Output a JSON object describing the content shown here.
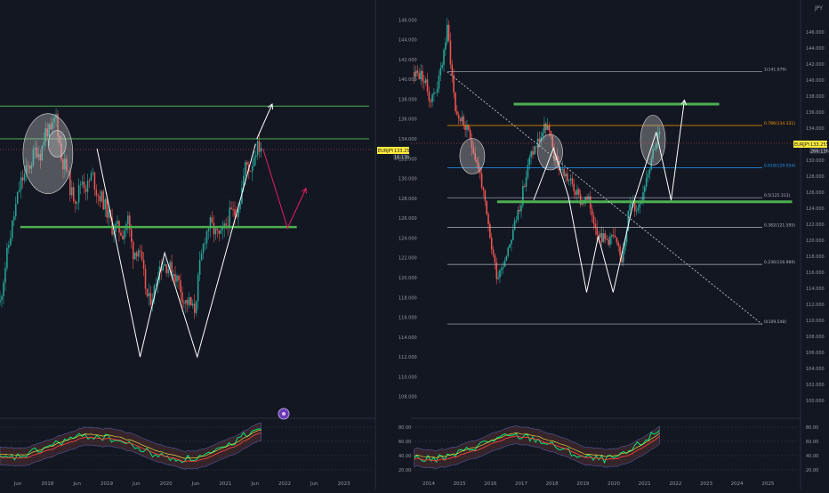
{
  "colors": {
    "bg": "#131722",
    "axis_text": "#9598a1",
    "grid": "#1e222d",
    "up": "#26a69a",
    "down": "#ef5350",
    "level_green": "#4caf50",
    "pattern_white": "#ffffff",
    "pattern_pink": "#e91e63",
    "fib_orange": "#ff9800",
    "fib_blue": "#2196f3",
    "price_tag_bg": "#ffeb3b",
    "rsi_green": "#00e676",
    "rsi_red": "#f44336",
    "rsi_yellow": "#ffeb3b"
  },
  "panels": {
    "left": {
      "currency": "",
      "price_tag": {
        "symbol": "EURJPY",
        "price": "133.255",
        "countdown": "16:13h"
      }
    },
    "right": {
      "currency": "JPY",
      "price_tag": {
        "symbol": "EURJPY",
        "price": "133.255",
        "countdown": "266:13h"
      },
      "fib_labels": [
        "1(141.079)",
        "0.786(134.331)",
        "0.618(129.054)",
        "0.5(125.313)",
        "0.382(121.595)",
        "0.236(116.989)",
        "0(109.548)"
      ]
    }
  },
  "rsi_ticks": [
    "80.00",
    "60.00",
    "40.00",
    "20.00"
  ],
  "chart_data": [
    {
      "type": "line",
      "title": "",
      "price_axis": [
        "146.000",
        "144.000",
        "142.000",
        "140.000",
        "138.000",
        "136.000",
        "134.000",
        "132.000",
        "130.000",
        "128.000",
        "126.000",
        "124.000",
        "122.000",
        "120.000",
        "118.000",
        "116.000",
        "114.000",
        "112.000",
        "110.000",
        "108.000"
      ],
      "time_axis": [
        "Jun",
        "2018",
        "Jun",
        "2019",
        "Jun",
        "2020",
        "Jun",
        "2021",
        "Jun",
        "2022",
        "Jun",
        "2023"
      ],
      "ylim": [
        106,
        148
      ],
      "xlim": [
        2017.17,
        2023.25
      ],
      "series": [
        {
          "x": [
            2017.17,
            2017.25,
            2017.33,
            2017.42,
            2017.5,
            2017.58,
            2017.67,
            2017.75,
            2017.83,
            2017.92,
            2018.0,
            2018.08,
            2018.17,
            2018.25,
            2018.33,
            2018.42,
            2018.5,
            2018.58,
            2018.67,
            2018.75,
            2018.83,
            2018.92,
            2019.0,
            2019.08,
            2019.17,
            2019.25,
            2019.33,
            2019.42,
            2019.5,
            2019.58,
            2019.67,
            2019.75,
            2019.83,
            2019.92,
            2020.0,
            2020.08,
            2020.17,
            2020.25,
            2020.33,
            2020.42,
            2020.5,
            2020.58,
            2020.67,
            2020.75,
            2020.83,
            2020.92,
            2021.0,
            2021.08,
            2021.17,
            2021.25,
            2021.33,
            2021.42
          ],
          "y": [
            117.5,
            121.0,
            124.0,
            127.0,
            129.5,
            130.5,
            131.5,
            133.0,
            132.5,
            135.0,
            134.5,
            136.5,
            132.0,
            131.0,
            128.5,
            128.0,
            130.0,
            129.0,
            130.5,
            128.5,
            128.0,
            126.5,
            125.0,
            125.0,
            124.5,
            126.0,
            122.5,
            123.0,
            120.5,
            117.5,
            118.5,
            121.0,
            121.5,
            121.0,
            120.5,
            119.5,
            117.5,
            117.5,
            116.5,
            121.0,
            124.0,
            125.5,
            124.5,
            124.0,
            125.0,
            126.5,
            126.5,
            128.0,
            131.5,
            131.0,
            133.0,
            133.3
          ]
        }
      ],
      "levels": [
        137.3,
        134.0,
        125.1
      ],
      "w_pattern_x": [
        2018.75,
        2019.45,
        2019.85,
        2020.38,
        2021.33
      ],
      "w_pattern_y": [
        133.0,
        112.0,
        122.5,
        112.0,
        133.5
      ],
      "projection_white_x": [
        2021.35,
        2021.6
      ],
      "projection_white_y": [
        134.0,
        137.5
      ],
      "projection_pink_x": [
        2021.45,
        2021.85,
        2022.15
      ],
      "projection_pink_y": [
        133.0,
        125.0,
        129.0
      ],
      "ellipse_centers": [
        [
          2017.95,
          132.5
        ],
        [
          2018.1,
          133.5
        ]
      ]
    },
    {
      "type": "line",
      "title": "",
      "price_axis": [
        "146.000",
        "144.000",
        "142.000",
        "140.000",
        "138.000",
        "136.000",
        "134.000",
        "132.000",
        "130.000",
        "128.000",
        "126.000",
        "124.000",
        "122.000",
        "120.000",
        "118.000",
        "116.000",
        "114.000",
        "112.000",
        "110.000",
        "108.000",
        "106.000",
        "104.000",
        "102.000",
        "100.000"
      ],
      "time_axis": [
        "2014",
        "2015",
        "2016",
        "2017",
        "2018",
        "2019",
        "2020",
        "2021",
        "2022",
        "2023",
        "2024",
        "2025"
      ],
      "ylim": [
        98,
        150
      ],
      "xlim": [
        2013.9,
        2025.6
      ],
      "series": [
        {
          "x": [
            2014.0,
            2014.25,
            2014.5,
            2014.75,
            2015.0,
            2015.25,
            2015.5,
            2015.75,
            2016.0,
            2016.25,
            2016.5,
            2016.75,
            2017.0,
            2017.25,
            2017.5,
            2017.75,
            2018.0,
            2018.25,
            2018.5,
            2018.75,
            2019.0,
            2019.25,
            2019.5,
            2019.75,
            2020.0,
            2020.25,
            2020.5,
            2020.75,
            2021.0,
            2021.25,
            2021.4
          ],
          "y": [
            141.0,
            140.5,
            137.5,
            140.0,
            146.5,
            136.0,
            134.5,
            132.0,
            128.0,
            121.0,
            115.5,
            118.0,
            121.5,
            125.5,
            130.5,
            132.5,
            134.5,
            130.0,
            128.5,
            127.0,
            125.0,
            125.0,
            121.5,
            120.0,
            120.5,
            117.5,
            124.5,
            124.0,
            128.0,
            132.0,
            133.3
          ]
        }
      ],
      "levels": [
        137.0,
        124.8
      ],
      "fib_levels": [
        141.079,
        134.331,
        129.054,
        125.313,
        121.595,
        116.989,
        109.548
      ],
      "w_pattern_x": [
        2017.6,
        2018.2,
        2018.65,
        2019.2,
        2019.55,
        2020.0,
        2020.6,
        2021.3
      ],
      "w_pattern_y": [
        125.0,
        131.5,
        125.5,
        113.5,
        120.5,
        113.5,
        124.5,
        133.5
      ],
      "projection_white_x": [
        2021.3,
        2021.75,
        2022.15
      ],
      "projection_white_y": [
        133.5,
        125.0,
        137.5
      ],
      "trendline_x": [
        2015.0,
        2024.5
      ],
      "trendline_y": [
        141.0,
        109.5
      ],
      "ellipse_centers": [
        [
          2015.75,
          130.5
        ],
        [
          2018.1,
          131.0
        ],
        [
          2021.2,
          132.5
        ]
      ]
    }
  ]
}
